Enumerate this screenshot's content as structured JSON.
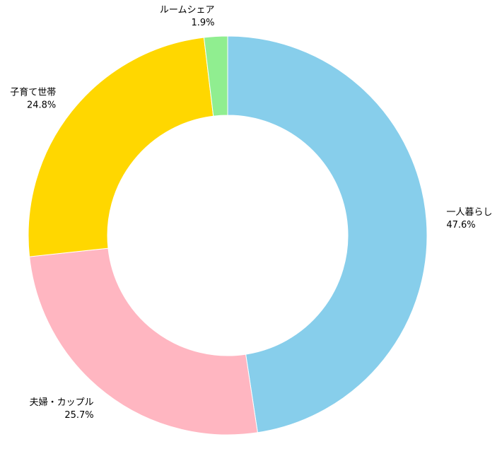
{
  "chart_data": {
    "type": "donut",
    "categories": [
      "一人暮らし",
      "夫婦・カップル",
      "子育て世帯",
      "ルームシェア"
    ],
    "values": [
      47.6,
      25.7,
      24.8,
      1.9
    ],
    "value_labels": [
      "47.6%",
      "25.7%",
      "24.8%",
      "1.9%"
    ],
    "colors": [
      "#87ceeb",
      "#ffb6c1",
      "#ffd700",
      "#90ee90"
    ]
  }
}
